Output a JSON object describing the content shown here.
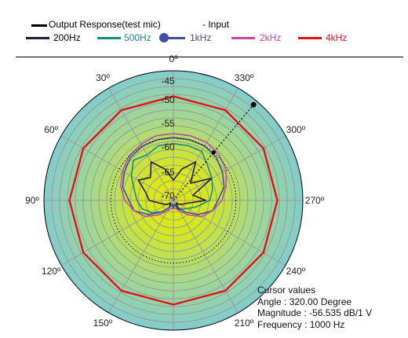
{
  "legend": {
    "output_label": "Output Response(test mic)",
    "input_label": "- Input"
  },
  "chart_data": {
    "type": "polar",
    "angle_direction": "counter-clockwise",
    "angle_zero": "top",
    "radial_axis": {
      "labels": [
        "-45",
        "-50",
        "-55",
        "-60",
        "-65",
        "-70"
      ]
    },
    "angle_labels": [
      "0º",
      "30º",
      "60º",
      "90º",
      "120º",
      "150º",
      "180º",
      "210º",
      "240º",
      "270º",
      "300º",
      "330º"
    ],
    "angle_ticks_deg": [
      0,
      30,
      60,
      90,
      120,
      150,
      180,
      210,
      240,
      270,
      300,
      330
    ],
    "series": [
      {
        "name": "200Hz",
        "color": "#2b1a33",
        "values": [
          [
            0,
            -67
          ],
          [
            15,
            -64
          ],
          [
            30,
            -61
          ],
          [
            45,
            -64
          ],
          [
            60,
            -62
          ],
          [
            75,
            -65
          ],
          [
            90,
            -66
          ],
          [
            105,
            -69
          ],
          [
            120,
            -70
          ],
          [
            135,
            -71
          ],
          [
            150,
            -70
          ],
          [
            165,
            -71
          ],
          [
            180,
            -70
          ],
          [
            195,
            -71
          ],
          [
            210,
            -69
          ],
          [
            225,
            -71
          ],
          [
            240,
            -70
          ],
          [
            255,
            -69
          ],
          [
            270,
            -64
          ],
          [
            285,
            -67
          ],
          [
            300,
            -61
          ],
          [
            315,
            -66
          ],
          [
            330,
            -61
          ],
          [
            345,
            -64
          ]
        ]
      },
      {
        "name": "500Hz",
        "color": "#1a8a82",
        "values": [
          [
            0,
            -58
          ],
          [
            15,
            -58
          ],
          [
            30,
            -59
          ],
          [
            45,
            -58
          ],
          [
            60,
            -60
          ],
          [
            75,
            -62
          ],
          [
            90,
            -63
          ],
          [
            105,
            -64
          ],
          [
            120,
            -66
          ],
          [
            135,
            -68
          ],
          [
            150,
            -70
          ],
          [
            165,
            -71
          ],
          [
            180,
            -70
          ],
          [
            195,
            -71
          ],
          [
            210,
            -70
          ],
          [
            225,
            -69
          ],
          [
            240,
            -68
          ],
          [
            255,
            -66
          ],
          [
            270,
            -63
          ],
          [
            285,
            -62
          ],
          [
            300,
            -61
          ],
          [
            315,
            -60
          ],
          [
            330,
            -58
          ],
          [
            345,
            -58
          ]
        ]
      },
      {
        "name": "1kHz",
        "color": "#3d4fa0",
        "values": [
          [
            0,
            -56.5
          ],
          [
            15,
            -56.5
          ],
          [
            30,
            -56.6
          ],
          [
            45,
            -57
          ],
          [
            60,
            -58
          ],
          [
            75,
            -59
          ],
          [
            90,
            -61
          ],
          [
            105,
            -62
          ],
          [
            120,
            -65
          ],
          [
            135,
            -68
          ],
          [
            150,
            -70
          ],
          [
            165,
            -71
          ],
          [
            180,
            -70
          ],
          [
            195,
            -71
          ],
          [
            210,
            -70
          ],
          [
            225,
            -68
          ],
          [
            240,
            -65
          ],
          [
            255,
            -62
          ],
          [
            270,
            -61
          ],
          [
            285,
            -59
          ],
          [
            300,
            -58
          ],
          [
            315,
            -57
          ],
          [
            330,
            -56.5
          ],
          [
            345,
            -56.5
          ]
        ]
      },
      {
        "name": "2kHz",
        "color": "#c04ca8",
        "values": [
          [
            0,
            -55.5
          ],
          [
            15,
            -55.5
          ],
          [
            30,
            -56
          ],
          [
            45,
            -56.5
          ],
          [
            60,
            -57.5
          ],
          [
            75,
            -58.5
          ],
          [
            90,
            -60
          ],
          [
            105,
            -62
          ],
          [
            120,
            -64
          ],
          [
            135,
            -67
          ],
          [
            150,
            -69
          ],
          [
            165,
            -70
          ],
          [
            180,
            -70
          ],
          [
            195,
            -70
          ],
          [
            210,
            -69
          ],
          [
            225,
            -67
          ],
          [
            240,
            -64
          ],
          [
            255,
            -62
          ],
          [
            270,
            -60
          ],
          [
            285,
            -58.5
          ],
          [
            300,
            -57
          ],
          [
            315,
            -56
          ],
          [
            330,
            -55.5
          ],
          [
            345,
            -55.5
          ]
        ]
      },
      {
        "name": "4kHz",
        "color": "#e0121a",
        "values": [
          [
            0,
            -46.3
          ],
          [
            30,
            -46.3
          ],
          [
            60,
            -46.3
          ],
          [
            90,
            -46.3
          ],
          [
            120,
            -46.3
          ],
          [
            150,
            -46.3
          ],
          [
            180,
            -46.3
          ],
          [
            210,
            -46.3
          ],
          [
            240,
            -46.3
          ],
          [
            270,
            -46.3
          ],
          [
            300,
            -46.3
          ],
          [
            330,
            -46.3
          ]
        ]
      }
    ],
    "cursor": {
      "angle_deg": 320,
      "title": "Cursor values",
      "angle_text": "Angle :  320.00 Degree",
      "magnitude_text": "Magnitude : -56.535 dB/1 V",
      "frequency_text": "Frequency : 1000 Hz"
    }
  },
  "colors": {
    "plot_outer": "#82cccc",
    "plot_center": "#e6ec00",
    "grid": "#9a9a9a"
  }
}
